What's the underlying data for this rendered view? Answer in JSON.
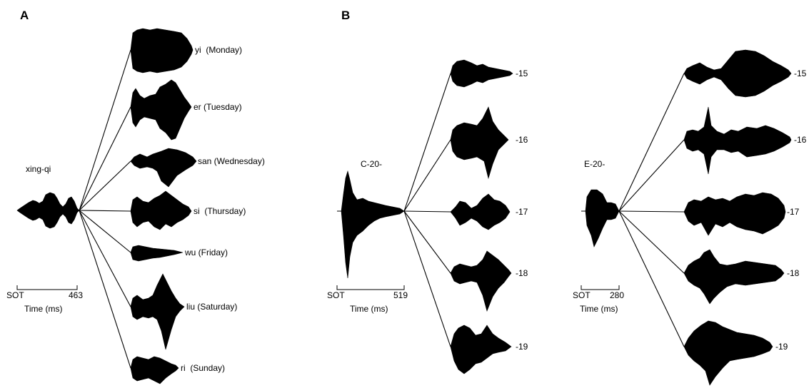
{
  "panels": [
    {
      "letter": "A",
      "stem_label": "xing-qi",
      "time_axis": {
        "start_label": "SOT",
        "end_label": "463",
        "title": "Time (ms)"
      },
      "branches": [
        "yi  (Monday)",
        "er (Tuesday)",
        "san (Wednesday)",
        "si  (Thursday)",
        "wu (Friday)",
        "liu (Saturday)",
        "ri  (Sunday)"
      ]
    },
    {
      "letter": "B",
      "stem_label": "C-20-",
      "time_axis": {
        "start_label": "SOT",
        "end_label": "519",
        "title": "Time (ms)"
      },
      "branches": [
        "-15",
        "-16",
        "-17",
        "-18",
        "-19"
      ]
    },
    {
      "letter": "",
      "stem_label": "E-20-",
      "time_axis": {
        "start_label": "SOT",
        "end_label": "280",
        "title": "Time (ms)"
      },
      "branches": [
        "-15",
        "-16",
        "-17",
        "-18",
        "-19"
      ]
    }
  ]
}
